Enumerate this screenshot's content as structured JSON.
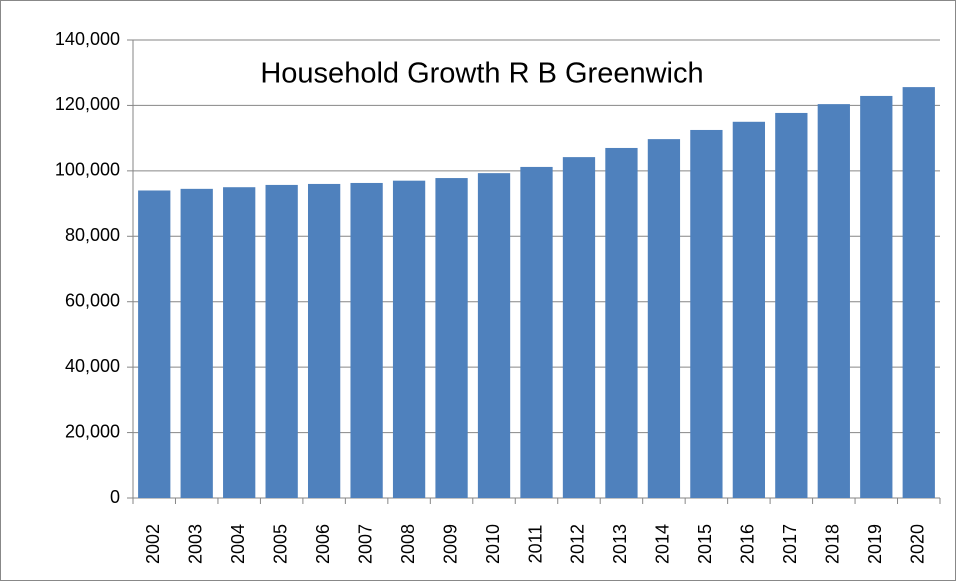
{
  "chart_data": {
    "type": "bar",
    "title": "Household Growth R B Greenwich",
    "categories": [
      "2002",
      "2003",
      "2004",
      "2005",
      "2006",
      "2007",
      "2008",
      "2009",
      "2010",
      "2011",
      "2012",
      "2013",
      "2014",
      "2015",
      "2016",
      "2017",
      "2018",
      "2019",
      "2020"
    ],
    "values": [
      94000,
      94500,
      95000,
      95700,
      96000,
      96300,
      97000,
      97800,
      99300,
      101200,
      104200,
      107000,
      109700,
      112500,
      115000,
      117700,
      120400,
      122900,
      125600
    ],
    "color": "#4f81bd",
    "ylim": [
      0,
      140000
    ],
    "yticks": [
      0,
      {
        "value": 20000,
        "label": "20,000"
      },
      {
        "value": 40000,
        "label": "40,000"
      },
      {
        "value": 60000,
        "label": "60,000"
      },
      {
        "value": 80000,
        "label": "80,000"
      },
      {
        "value": 100000,
        "label": "100,000"
      },
      {
        "value": 120000,
        "label": "120,000"
      },
      {
        "value": 140000,
        "label": "140,000"
      }
    ],
    "grid": true
  }
}
